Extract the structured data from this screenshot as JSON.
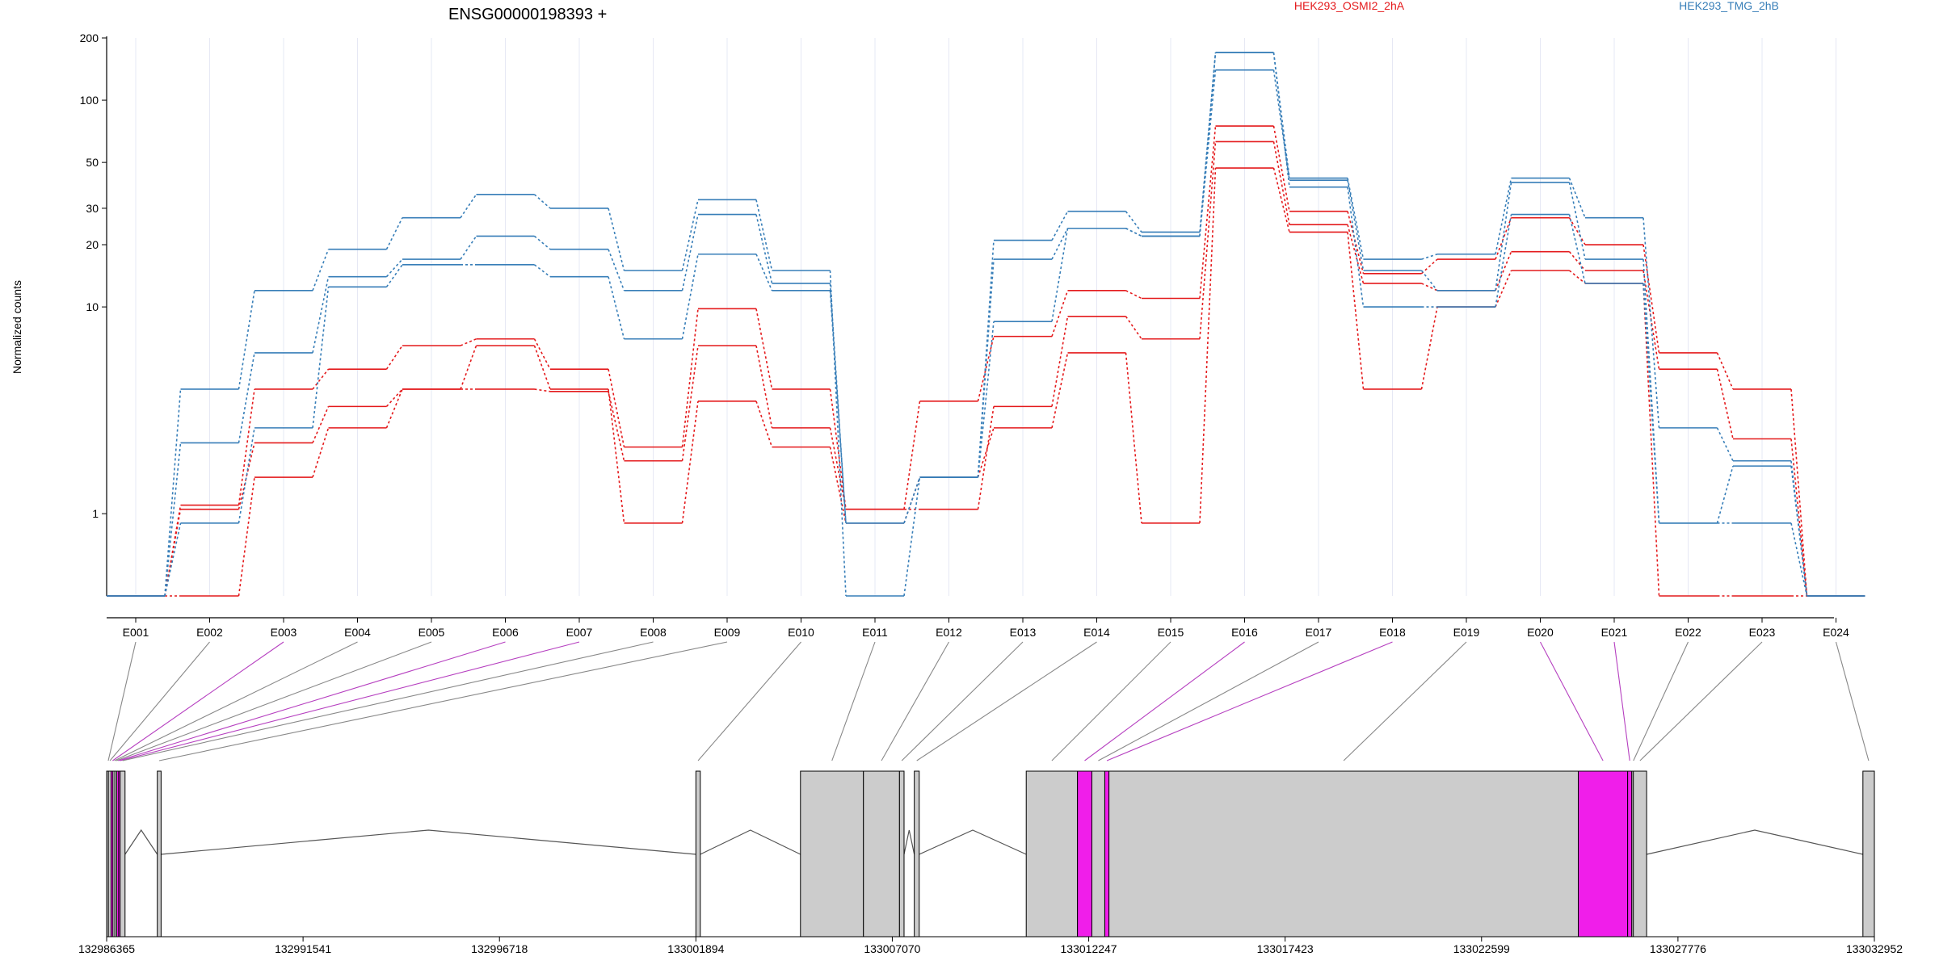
{
  "chart_data": {
    "type": "line",
    "title": "ENSG00000198393 +",
    "ylabel": "Normalized counts",
    "xlabel": "",
    "yscale": "log",
    "ylim": [
      0.4,
      200
    ],
    "grid": "vertical-light",
    "legend_placement": "top-right",
    "yticks": [
      {
        "value": 1,
        "label": "1"
      },
      {
        "value": 10,
        "label": "10"
      },
      {
        "value": 20,
        "label": "20"
      },
      {
        "value": 30,
        "label": "30"
      },
      {
        "value": 50,
        "label": "50"
      },
      {
        "value": 100,
        "label": "100"
      },
      {
        "value": 200,
        "label": "200"
      }
    ],
    "categories": [
      "E001",
      "E002",
      "E003",
      "E004",
      "E005",
      "E006",
      "E007",
      "E008",
      "E009",
      "E010",
      "E011",
      "E012",
      "E013",
      "E014",
      "E015",
      "E016",
      "E017",
      "E018",
      "E019",
      "E020",
      "E021",
      "E022",
      "E023",
      "E024"
    ],
    "groups": [
      {
        "name": "HEK293_OSMI2_2hA",
        "color": "#e41a1c"
      },
      {
        "name": "HEK293_TMG_2hB",
        "color": "#377eb8"
      }
    ],
    "series": [
      {
        "group": "HEK293_OSMI2_2hA",
        "values": [
          0.4,
          1.1,
          4.0,
          5.0,
          6.5,
          7.0,
          5.0,
          2.1,
          9.8,
          4.0,
          1.05,
          3.5,
          7.2,
          12.0,
          11.0,
          75,
          29,
          14.5,
          17,
          27,
          20,
          6.0,
          4.0,
          0.4
        ]
      },
      {
        "group": "HEK293_OSMI2_2hA",
        "values": [
          0.4,
          1.05,
          2.2,
          3.3,
          4.0,
          4.0,
          3.9,
          1.8,
          6.5,
          2.6,
          1.05,
          1.05,
          3.3,
          9.0,
          7.0,
          63,
          25,
          13,
          12,
          18.5,
          15,
          5.0,
          2.3,
          0.4
        ]
      },
      {
        "group": "HEK293_OSMI2_2hA",
        "values": [
          0.4,
          0.4,
          1.5,
          2.6,
          4.0,
          6.5,
          4.0,
          0.9,
          3.5,
          2.1,
          0.9,
          1.5,
          2.6,
          6.0,
          0.9,
          47,
          23,
          4.0,
          10,
          15,
          13,
          0.4,
          0.4,
          0.4
        ]
      },
      {
        "group": "HEK293_TMG_2hB",
        "values": [
          0.4,
          4.0,
          12.0,
          19,
          27,
          35,
          30,
          15,
          33,
          15,
          0.4,
          1.5,
          21,
          29,
          23,
          170,
          42,
          17,
          18,
          42,
          27,
          2.6,
          1.8,
          0.4
        ]
      },
      {
        "group": "HEK293_TMG_2hB",
        "values": [
          0.4,
          2.2,
          6.0,
          14,
          17,
          22,
          19,
          12,
          28,
          13,
          0.9,
          1.5,
          17,
          24,
          22,
          140,
          41,
          15,
          12,
          40,
          17,
          0.9,
          1.7,
          0.4
        ]
      },
      {
        "group": "HEK293_TMG_2hB",
        "values": [
          0.4,
          0.9,
          2.6,
          12.5,
          16,
          16,
          14,
          7.0,
          18,
          12,
          0.9,
          1.5,
          8.5,
          24,
          22,
          170,
          38,
          10,
          10,
          28,
          13,
          0.9,
          0.9,
          0.4
        ]
      }
    ],
    "exon_model": {
      "xticks": [
        "132986365",
        "132991541",
        "132996718",
        "133001894",
        "133007070",
        "133012247",
        "133017423",
        "133022599",
        "133027776",
        "133032952"
      ],
      "genomic_range": [
        132986365,
        133032952
      ],
      "exons": [
        {
          "id": "E001",
          "start": 132986365,
          "end": 132986410,
          "highlight": false
        },
        {
          "id": "E002",
          "start": 132986410,
          "end": 132986480,
          "highlight": false
        },
        {
          "id": "E003",
          "start": 132986480,
          "end": 132986530,
          "highlight": true
        },
        {
          "id": "E004",
          "start": 132986530,
          "end": 132986580,
          "highlight": false
        },
        {
          "id": "E005",
          "start": 132986580,
          "end": 132986630,
          "highlight": false
        },
        {
          "id": "E006",
          "start": 132986630,
          "end": 132986680,
          "highlight": true
        },
        {
          "id": "E007",
          "start": 132986680,
          "end": 132986720,
          "highlight": true
        },
        {
          "id": "E008",
          "start": 132986720,
          "end": 132986850,
          "highlight": false
        },
        {
          "id": "E009",
          "start": 132987700,
          "end": 132987800,
          "highlight": false
        },
        {
          "id": "E010",
          "start": 133001894,
          "end": 133002010,
          "highlight": false
        },
        {
          "id": "E011",
          "start": 133004650,
          "end": 133006310,
          "highlight": false
        },
        {
          "id": "E012",
          "start": 133006310,
          "end": 133007260,
          "highlight": false
        },
        {
          "id": "E013",
          "start": 133007260,
          "end": 133007380,
          "highlight": false
        },
        {
          "id": "E014",
          "start": 133007650,
          "end": 133007780,
          "highlight": false
        },
        {
          "id": "E015",
          "start": 133010600,
          "end": 133011950,
          "highlight": false
        },
        {
          "id": "E016",
          "start": 133011950,
          "end": 133012330,
          "highlight": true
        },
        {
          "id": "E017",
          "start": 133012330,
          "end": 133012670,
          "highlight": false
        },
        {
          "id": "E018",
          "start": 133012670,
          "end": 133012780,
          "highlight": true
        },
        {
          "id": "E019",
          "start": 133012780,
          "end": 133025150,
          "highlight": false
        },
        {
          "id": "E020",
          "start": 133025150,
          "end": 133026450,
          "highlight": true
        },
        {
          "id": "E021",
          "start": 133026450,
          "end": 133026560,
          "highlight": true
        },
        {
          "id": "E022",
          "start": 133026560,
          "end": 133026600,
          "highlight": false
        },
        {
          "id": "E023",
          "start": 133026600,
          "end": 133026950,
          "highlight": false
        },
        {
          "id": "E024",
          "start": 133032650,
          "end": 133032952,
          "highlight": false
        }
      ]
    }
  }
}
